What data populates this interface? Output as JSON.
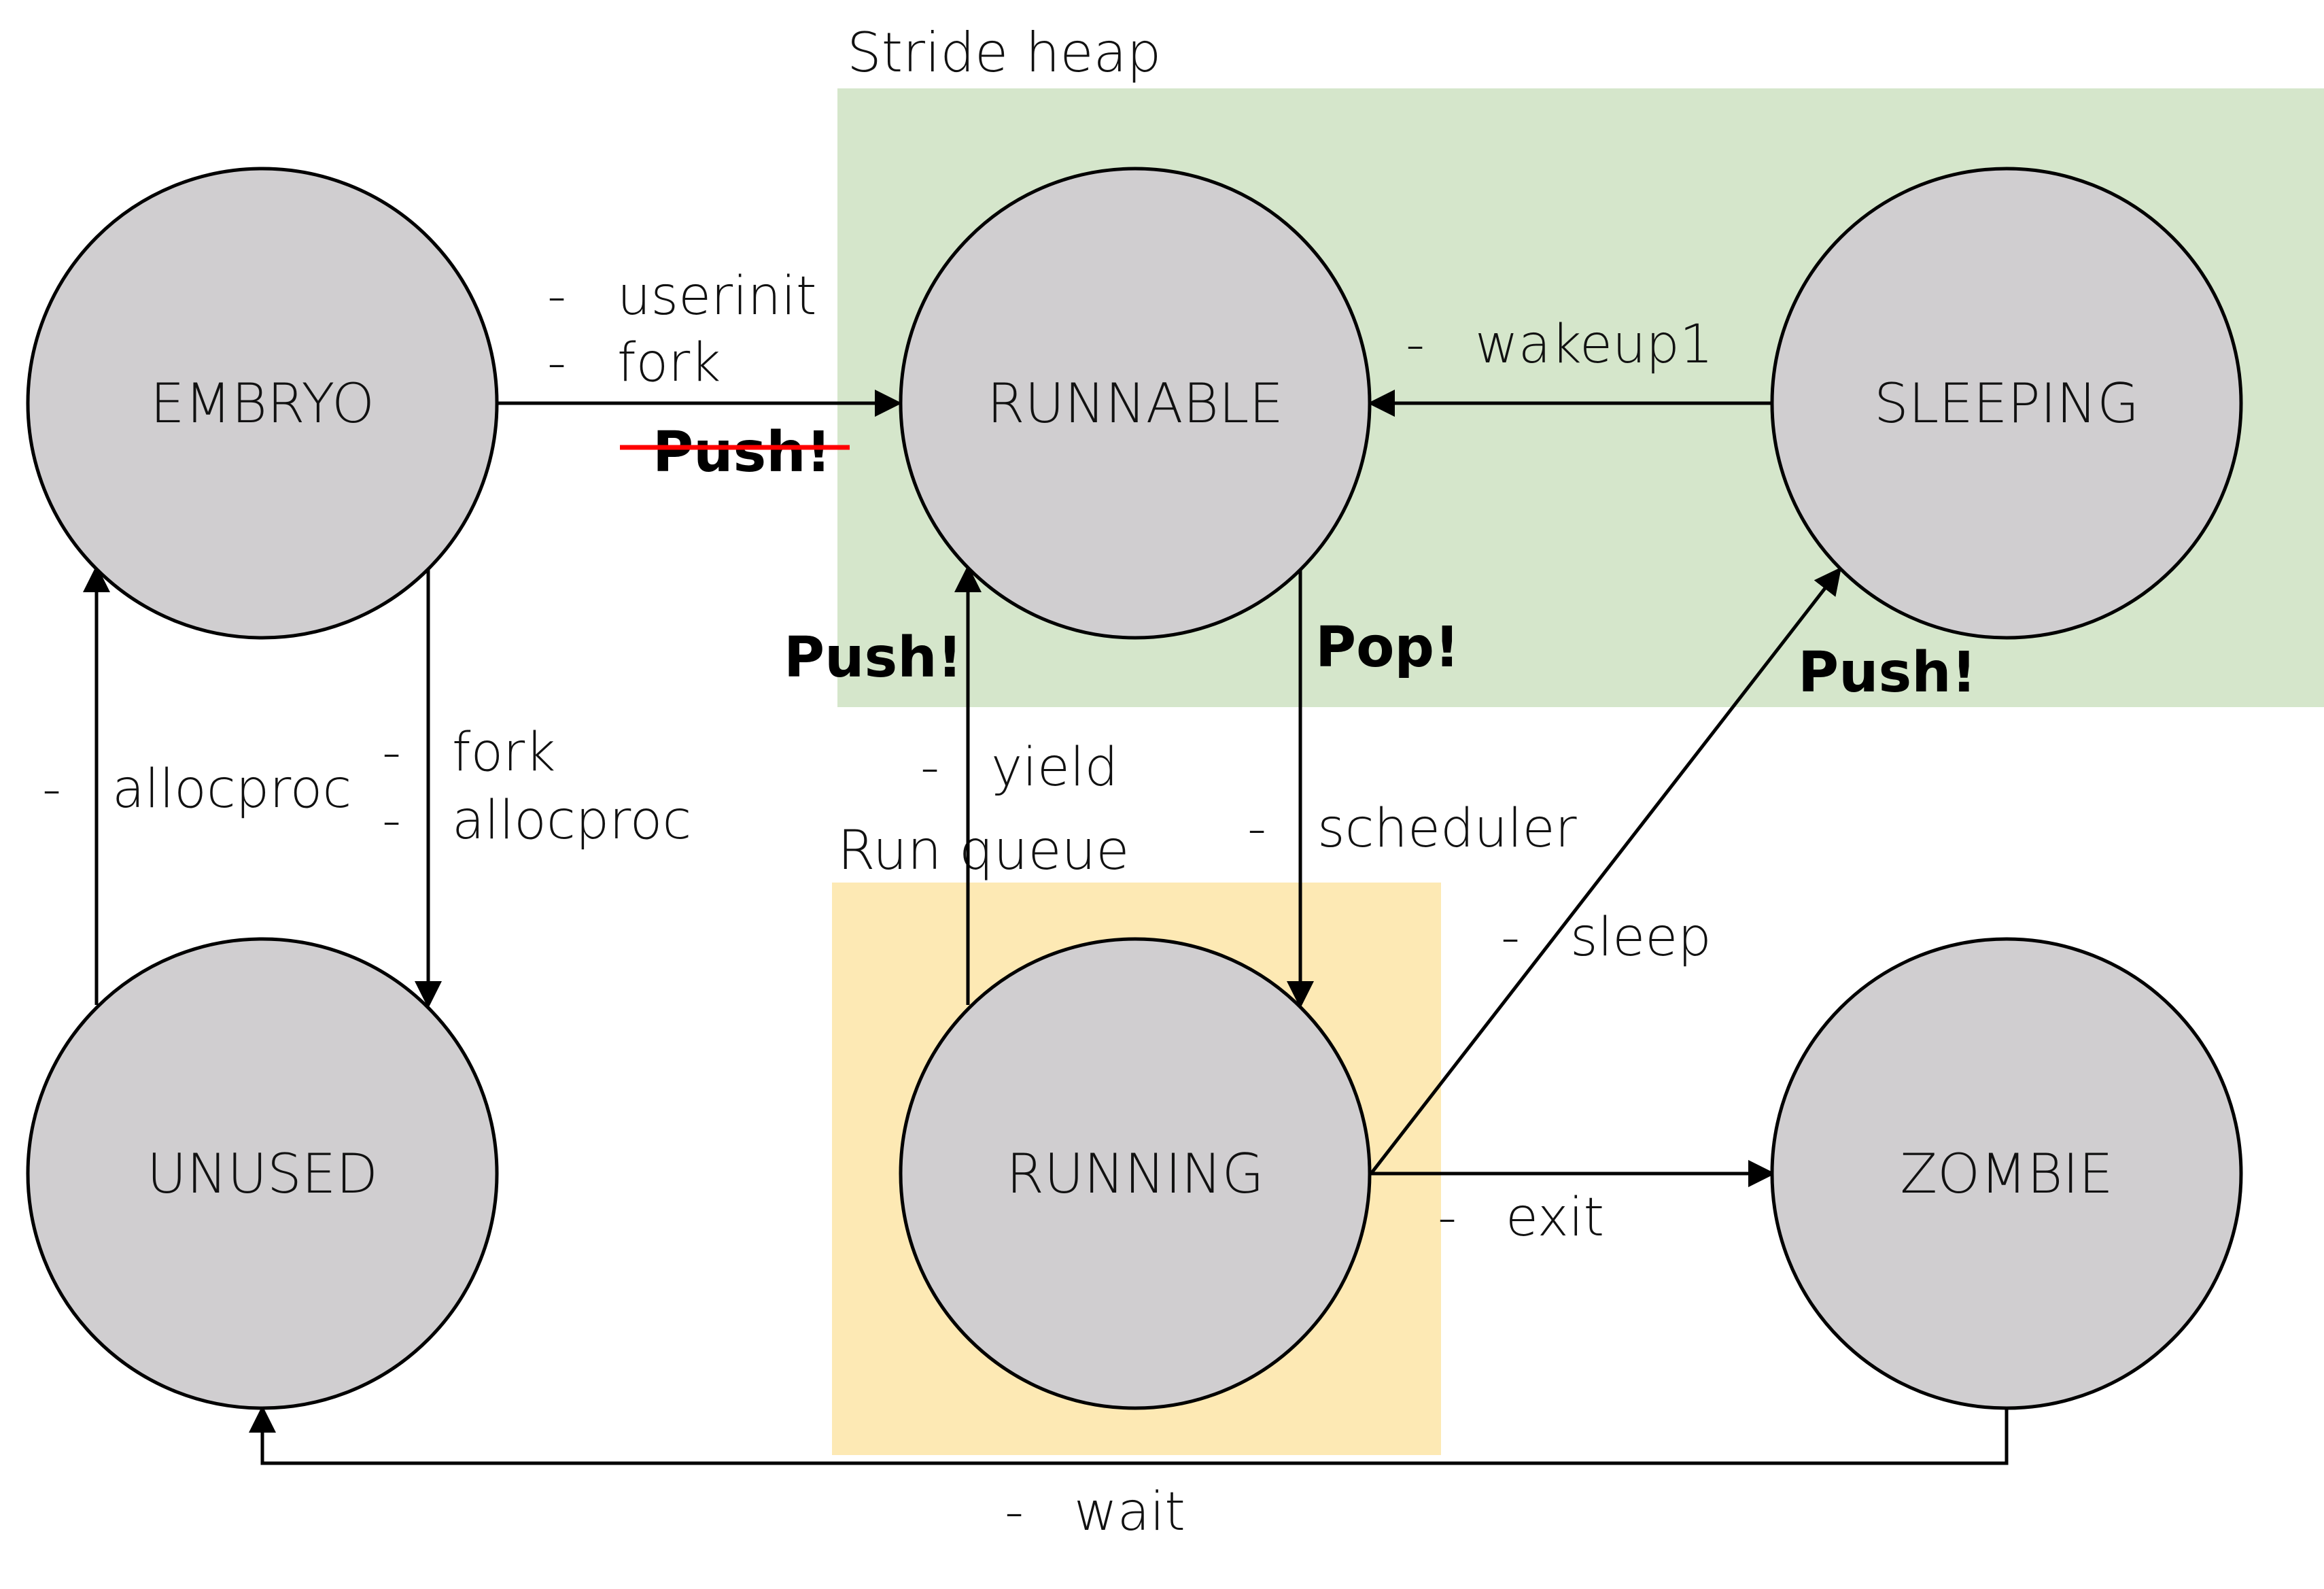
{
  "colors": {
    "stride_heap_fill": "#d5e6cb",
    "run_queue_fill": "#fde9b4",
    "state_fill": "#d0ced0",
    "strike": "#ff0000"
  },
  "regions": {
    "stride_heap": "Stride heap",
    "run_queue": "Run queue"
  },
  "states": {
    "embryo": "EMBRYO",
    "runnable": "RUNNABLE",
    "sleeping": "SLEEPING",
    "unused": "UNUSED",
    "running": "RUNNING",
    "zombie": "ZOMBIE"
  },
  "transitions": {
    "embryo_to_runnable": [
      "userinit",
      "fork"
    ],
    "sleeping_to_runnable": [
      "wakeup1"
    ],
    "unused_to_embryo": [
      "allocproc"
    ],
    "embryo_to_unused": [
      "fork",
      "allocproc"
    ],
    "running_to_runnable": [
      "yield"
    ],
    "runnable_to_running": [
      "scheduler"
    ],
    "running_to_sleeping": [
      "sleep"
    ],
    "running_to_zombie": [
      "exit"
    ],
    "zombie_to_unused": [
      "wait"
    ]
  },
  "bullet": "-",
  "ops": {
    "push_struck": "Push!",
    "push_yield": "Push!",
    "pop": "Pop!",
    "push_sleep": "Push!"
  }
}
